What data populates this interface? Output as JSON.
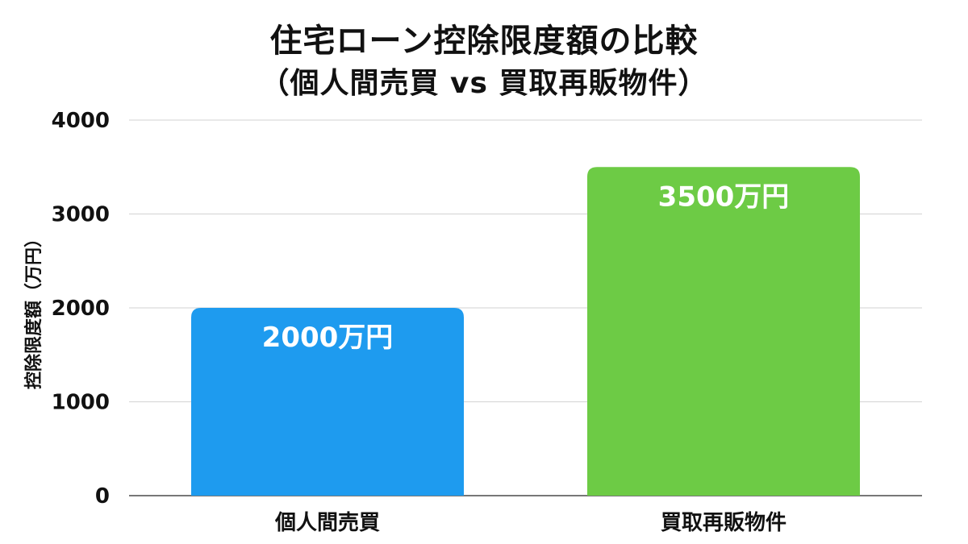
{
  "chart_data": {
    "type": "bar",
    "title": "住宅ローン控除限度額の比較",
    "subtitle": "（個人間売買 vs 買取再販物件）",
    "xlabel": "",
    "ylabel": "控除限度額（万円）",
    "categories": [
      "個人間売買",
      "買取再販物件"
    ],
    "values": [
      2000,
      3500
    ],
    "data_labels": [
      "2000万円",
      "3500万円"
    ],
    "colors": [
      "#1E9BEF",
      "#6DCB45"
    ],
    "ylim": [
      0,
      4000
    ],
    "yticks": [
      0,
      1000,
      2000,
      3000,
      4000
    ],
    "grid": true,
    "legend": "none"
  }
}
